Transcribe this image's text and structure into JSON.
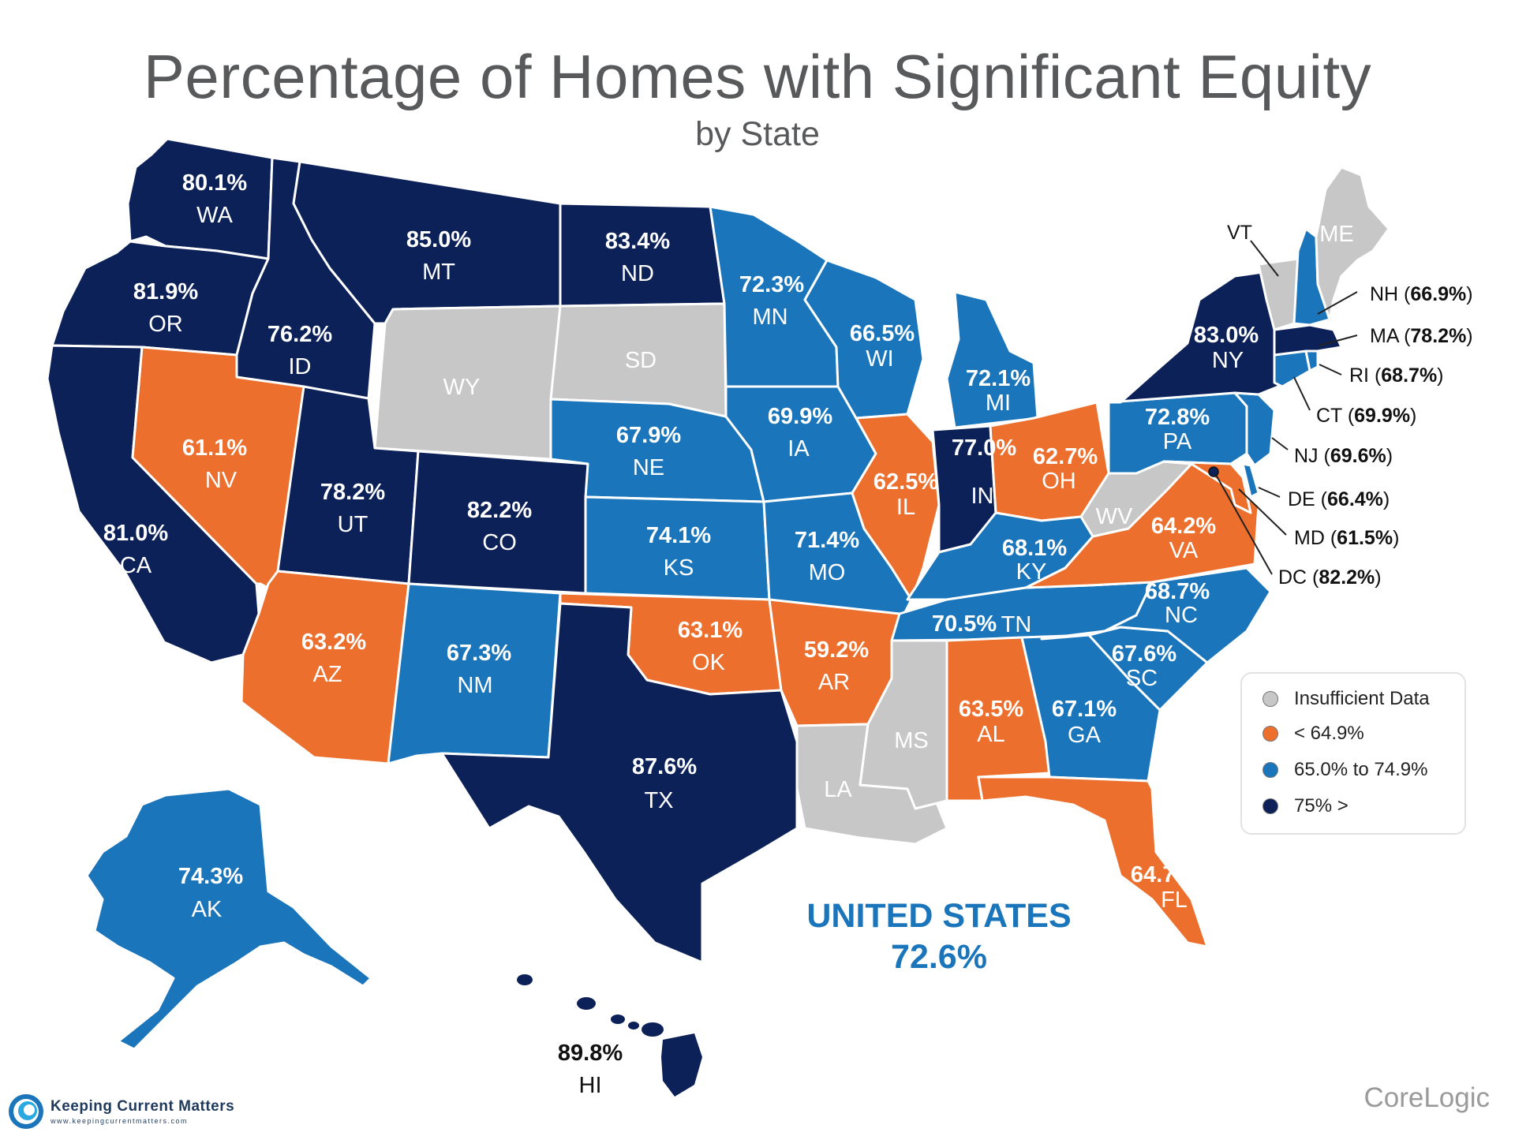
{
  "title": "Percentage of Homes with Significant Equity",
  "subtitle": "by State",
  "colors": {
    "insufficient": "#c8c7c7",
    "low": "#ec6f2d",
    "mid": "#1a75bb",
    "high": "#0d2159",
    "us": "#1a75bb"
  },
  "legend": {
    "items": [
      {
        "label": "Insufficient Data",
        "category": "insufficient"
      },
      {
        "label": "< 64.9%",
        "category": "low"
      },
      {
        "label": "65.0% to 74.9%",
        "category": "mid"
      },
      {
        "label": "75% >",
        "category": "high"
      }
    ]
  },
  "us_total": {
    "label": "UNITED STATES",
    "value": "72.6%"
  },
  "states": {
    "WA": {
      "abbr": "WA",
      "value": "80.1%",
      "category": "high"
    },
    "OR": {
      "abbr": "OR",
      "value": "81.9%",
      "category": "high"
    },
    "CA": {
      "abbr": "CA",
      "value": "81.0%",
      "category": "high"
    },
    "ID": {
      "abbr": "ID",
      "value": "76.2%",
      "category": "high"
    },
    "NV": {
      "abbr": "NV",
      "value": "61.1%",
      "category": "low"
    },
    "MT": {
      "abbr": "MT",
      "value": "85.0%",
      "category": "high"
    },
    "WY": {
      "abbr": "WY",
      "value": null,
      "category": "insufficient"
    },
    "UT": {
      "abbr": "UT",
      "value": "78.2%",
      "category": "high"
    },
    "AZ": {
      "abbr": "AZ",
      "value": "63.2%",
      "category": "low"
    },
    "CO": {
      "abbr": "CO",
      "value": "82.2%",
      "category": "high"
    },
    "NM": {
      "abbr": "NM",
      "value": "67.3%",
      "category": "mid"
    },
    "ND": {
      "abbr": "ND",
      "value": "83.4%",
      "category": "high"
    },
    "SD": {
      "abbr": "SD",
      "value": null,
      "category": "insufficient"
    },
    "NE": {
      "abbr": "NE",
      "value": "67.9%",
      "category": "mid"
    },
    "KS": {
      "abbr": "KS",
      "value": "74.1%",
      "category": "mid"
    },
    "OK": {
      "abbr": "OK",
      "value": "63.1%",
      "category": "low"
    },
    "TX": {
      "abbr": "TX",
      "value": "87.6%",
      "category": "high"
    },
    "MN": {
      "abbr": "MN",
      "value": "72.3%",
      "category": "mid"
    },
    "IA": {
      "abbr": "IA",
      "value": "69.9%",
      "category": "mid"
    },
    "MO": {
      "abbr": "MO",
      "value": "71.4%",
      "category": "mid"
    },
    "AR": {
      "abbr": "AR",
      "value": "59.2%",
      "category": "low"
    },
    "LA": {
      "abbr": "LA",
      "value": null,
      "category": "insufficient"
    },
    "WI": {
      "abbr": "WI",
      "value": "66.5%",
      "category": "mid"
    },
    "IL": {
      "abbr": "IL",
      "value": "62.5%",
      "category": "low"
    },
    "MI": {
      "abbr": "MI",
      "value": "72.1%",
      "category": "mid"
    },
    "IN": {
      "abbr": "IN",
      "value": "77.0%",
      "category": "high"
    },
    "OH": {
      "abbr": "OH",
      "value": "62.7%",
      "category": "low"
    },
    "KY": {
      "abbr": "KY",
      "value": "68.1%",
      "category": "mid"
    },
    "TN": {
      "abbr": "TN",
      "value": "70.5%",
      "category": "mid"
    },
    "MS": {
      "abbr": "MS",
      "value": null,
      "category": "insufficient"
    },
    "AL": {
      "abbr": "AL",
      "value": "63.5%",
      "category": "low"
    },
    "GA": {
      "abbr": "GA",
      "value": "67.1%",
      "category": "mid"
    },
    "FL": {
      "abbr": "FL",
      "value": "64.7%",
      "category": "low"
    },
    "SC": {
      "abbr": "SC",
      "value": "67.6%",
      "category": "mid"
    },
    "NC": {
      "abbr": "NC",
      "value": "68.7%",
      "category": "mid"
    },
    "VA": {
      "abbr": "VA",
      "value": "64.2%",
      "category": "low"
    },
    "WV": {
      "abbr": "WV",
      "value": null,
      "category": "insufficient"
    },
    "PA": {
      "abbr": "PA",
      "value": "72.8%",
      "category": "mid"
    },
    "NY": {
      "abbr": "NY",
      "value": "83.0%",
      "category": "high"
    },
    "VT": {
      "abbr": "VT",
      "value": null,
      "category": "insufficient"
    },
    "NH": {
      "abbr": "NH",
      "value": "66.9%",
      "category": "mid"
    },
    "ME": {
      "abbr": "ME",
      "value": null,
      "category": "insufficient"
    },
    "MA": {
      "abbr": "MA",
      "value": "78.2%",
      "category": "high"
    },
    "RI": {
      "abbr": "RI",
      "value": "68.7%",
      "category": "mid"
    },
    "CT": {
      "abbr": "CT",
      "value": "69.9%",
      "category": "mid"
    },
    "NJ": {
      "abbr": "NJ",
      "value": "69.6%",
      "category": "mid"
    },
    "DE": {
      "abbr": "DE",
      "value": "66.4%",
      "category": "mid"
    },
    "MD": {
      "abbr": "MD",
      "value": "61.5%",
      "category": "low"
    },
    "DC": {
      "abbr": "DC",
      "value": "82.2%",
      "category": "high"
    },
    "AK": {
      "abbr": "AK",
      "value": "74.3%",
      "category": "mid"
    },
    "HI": {
      "abbr": "HI",
      "value": "89.8%",
      "category": "high"
    }
  },
  "brand": {
    "name": "Keeping Current Matters",
    "url": "www.keepingcurrentmatters.com"
  },
  "source": "CoreLogic"
}
